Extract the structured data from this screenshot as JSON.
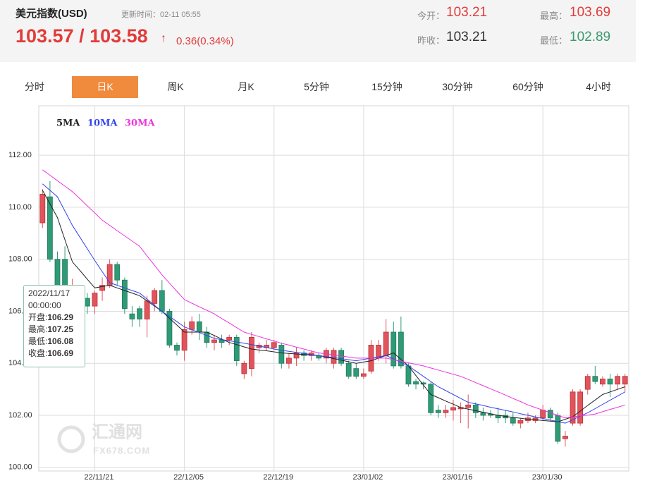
{
  "header": {
    "title": "美元指数(USD)",
    "updated": "更新时间：02-11 05:55",
    "price": "103.57 / 103.58",
    "arrow": "↑",
    "change": "0.36(0.34%)",
    "stats": [
      {
        "label": "今开：",
        "value": 103.21
      },
      {
        "label": "最高：",
        "value": 103.69
      },
      {
        "label": "昨收：",
        "value": 103.21
      },
      {
        "label": "最低：",
        "value": 102.89
      }
    ]
  },
  "tabs": [
    "分时",
    "日K",
    "周K",
    "月K",
    "5分钟",
    "15分钟",
    "30分钟",
    "60分钟",
    "4小时"
  ],
  "active_tab": 1,
  "watermark": {
    "name": "汇通网",
    "site": "FX678.COM"
  },
  "tooltip": {
    "date": "2022/11/17",
    "time": "00:00:00",
    "labels": [
      "开盘:",
      "最高:",
      "最低:",
      "收盘:"
    ]
  },
  "chart_data": {
    "type": "candlestick",
    "categories": [
      null,
      null,
      null,
      null,
      null,
      null,
      null,
      "22/11/21",
      null,
      null,
      null,
      null,
      null,
      null,
      null,
      null,
      null,
      null,
      null,
      "22/12/05",
      null,
      null,
      null,
      null,
      null,
      null,
      null,
      null,
      null,
      null,
      null,
      "22/12/19",
      null,
      null,
      null,
      null,
      null,
      null,
      null,
      null,
      null,
      null,
      null,
      "23/01/02",
      null,
      null,
      null,
      null,
      null,
      null,
      null,
      null,
      null,
      null,
      null,
      "23/01/16",
      null,
      null,
      null,
      null,
      null,
      null,
      null,
      null,
      null,
      null,
      null,
      "23/01/30",
      null,
      null,
      null,
      null,
      null,
      null,
      null,
      null,
      null,
      null,
      null
    ],
    "candles": {
      "up_color": "#e2545b",
      "down_color": "#2f9a76",
      "open": [
        109.4,
        110.4,
        108.0,
        108.0,
        106.29,
        106.7,
        106.5,
        106.2,
        106.8,
        107.0,
        107.8,
        107.2,
        105.9,
        106.1,
        105.7,
        106.3,
        106.8,
        106.0,
        104.7,
        104.5,
        105.3,
        105.6,
        105.2,
        104.8,
        104.9,
        104.9,
        105.0,
        103.6,
        103.8,
        104.6,
        104.6,
        104.6,
        104.7,
        104.0,
        104.2,
        104.4,
        104.3,
        104.3,
        104.2,
        104.0,
        104.5,
        104.0,
        103.8,
        103.5,
        103.7,
        104.2,
        104.3,
        105.2,
        105.2,
        103.9,
        103.3,
        103.25,
        103.2,
        102.2,
        102.1,
        102.2,
        102.25,
        102.3,
        102.4,
        102.1,
        102.05,
        102.0,
        102.0,
        101.9,
        101.7,
        101.8,
        101.8,
        101.9,
        102.2,
        102.0,
        101.1,
        101.7,
        101.7,
        103.0,
        103.5,
        103.2,
        103.4,
        103.2,
        103.2
      ],
      "high": [
        110.7,
        111.0,
        108.3,
        108.5,
        107.25,
        107.0,
        106.7,
        106.8,
        107.3,
        108.0,
        107.9,
        107.3,
        106.2,
        106.2,
        106.6,
        106.9,
        107.2,
        106.1,
        104.8,
        105.6,
        105.8,
        105.9,
        105.4,
        105.1,
        105.1,
        105.1,
        105.1,
        104.1,
        105.2,
        104.8,
        104.9,
        104.9,
        104.8,
        104.4,
        104.6,
        104.5,
        104.5,
        104.4,
        104.6,
        104.6,
        104.6,
        104.1,
        104.0,
        103.8,
        104.9,
        104.9,
        105.7,
        105.6,
        105.8,
        104.0,
        103.4,
        103.3,
        103.3,
        102.4,
        102.4,
        102.6,
        102.5,
        102.8,
        102.5,
        102.3,
        102.2,
        102.3,
        102.2,
        102.1,
        101.9,
        102.1,
        102.0,
        102.4,
        102.3,
        102.1,
        101.4,
        103.0,
        103.0,
        103.6,
        103.9,
        103.5,
        103.6,
        103.6,
        103.6
      ],
      "low": [
        109.2,
        107.9,
        106.2,
        106.2,
        106.08,
        106.0,
        105.9,
        105.9,
        106.4,
        106.9,
        107.0,
        105.9,
        105.4,
        105.4,
        105.0,
        106.0,
        105.9,
        104.6,
        104.3,
        104.1,
        105.1,
        104.9,
        104.6,
        104.5,
        104.6,
        104.7,
        103.9,
        103.4,
        103.5,
        104.4,
        104.5,
        104.5,
        103.8,
        103.8,
        103.9,
        104.1,
        104.1,
        104.1,
        104.0,
        103.8,
        103.9,
        103.4,
        103.4,
        103.4,
        103.6,
        104.1,
        104.0,
        103.8,
        103.8,
        103.1,
        103.0,
        103.0,
        102.0,
        101.9,
        101.9,
        101.8,
        101.7,
        101.5,
        101.9,
        101.8,
        101.9,
        101.7,
        101.7,
        101.6,
        101.5,
        101.7,
        101.7,
        101.8,
        101.8,
        100.9,
        100.8,
        101.6,
        101.6,
        102.8,
        103.2,
        103.1,
        102.7,
        103.0,
        102.9
      ],
      "close": [
        110.5,
        108.0,
        106.4,
        106.5,
        106.69,
        106.3,
        106.2,
        106.7,
        107.0,
        107.8,
        107.2,
        106.1,
        105.7,
        105.7,
        106.4,
        106.8,
        106.0,
        104.7,
        104.5,
        105.3,
        105.6,
        105.2,
        104.8,
        104.9,
        104.8,
        105.0,
        104.1,
        104.0,
        105.0,
        104.7,
        104.7,
        104.8,
        104.0,
        104.2,
        104.4,
        104.3,
        104.4,
        104.2,
        104.5,
        104.5,
        104.0,
        103.5,
        103.5,
        103.6,
        104.7,
        104.7,
        105.2,
        103.9,
        103.9,
        103.2,
        103.2,
        103.2,
        102.1,
        102.1,
        102.2,
        102.3,
        102.3,
        102.4,
        102.1,
        102.0,
        102.0,
        101.9,
        101.9,
        101.7,
        101.8,
        101.9,
        101.9,
        102.2,
        101.9,
        101.0,
        101.2,
        102.9,
        102.9,
        103.5,
        103.3,
        103.4,
        103.2,
        103.5,
        103.5
      ]
    },
    "series": [
      {
        "name": "5MA",
        "color": "#222222",
        "values": [
          110.65,
          110.13,
          109.6,
          108.75,
          107.9,
          107.57,
          107.23,
          106.9,
          106.95,
          107.0,
          106.9,
          106.8,
          106.7,
          106.6,
          106.4,
          106.2,
          106.0,
          105.73,
          105.47,
          105.2,
          105.2,
          105.2,
          105.2,
          105.07,
          104.93,
          104.8,
          104.72,
          104.63,
          104.55,
          104.51,
          104.48,
          104.44,
          104.4,
          104.38,
          104.36,
          104.34,
          104.32,
          104.3,
          104.24,
          104.18,
          104.12,
          104.06,
          104.0,
          104.05,
          104.1,
          104.2,
          104.3,
          104.4,
          104.15,
          103.9,
          103.53,
          103.17,
          102.8,
          102.68,
          102.55,
          102.43,
          102.3,
          102.24,
          102.18,
          102.12,
          102.06,
          102.0,
          101.96,
          101.92,
          101.89,
          101.85,
          101.83,
          101.8,
          101.78,
          101.75,
          101.85,
          101.95,
          102.16,
          102.38,
          102.59,
          102.8,
          102.9,
          103.0,
          103.1
        ]
      },
      {
        "name": "10MA",
        "color": "#3344ee",
        "values": [
          110.9,
          110.65,
          110.4,
          109.85,
          109.3,
          108.85,
          108.4,
          107.95,
          107.52,
          107.1,
          107.0,
          106.9,
          106.8,
          106.7,
          106.47,
          106.23,
          106.0,
          105.8,
          105.6,
          105.4,
          105.29,
          105.18,
          105.07,
          104.96,
          104.91,
          104.87,
          104.82,
          104.77,
          104.72,
          104.66,
          104.61,
          104.55,
          104.5,
          104.46,
          104.42,
          104.38,
          104.34,
          104.3,
          104.26,
          104.22,
          104.18,
          104.14,
          104.1,
          104.15,
          104.2,
          104.25,
          104.3,
          104.17,
          104.03,
          103.9,
          103.7,
          103.5,
          103.3,
          103.1,
          102.95,
          102.8,
          102.65,
          102.5,
          102.44,
          102.38,
          102.31,
          102.25,
          102.19,
          102.13,
          102.06,
          102.0,
          101.94,
          101.88,
          101.82,
          101.76,
          101.7,
          101.83,
          101.97,
          102.1,
          102.26,
          102.42,
          102.58,
          102.74,
          102.9
        ]
      },
      {
        "name": "30MA",
        "color": "#ee33dd",
        "values": [
          111.44,
          111.23,
          111.02,
          110.81,
          110.6,
          110.33,
          110.05,
          109.78,
          109.5,
          109.3,
          109.1,
          108.9,
          108.7,
          108.5,
          108.13,
          107.77,
          107.4,
          107.08,
          106.77,
          106.45,
          106.31,
          106.17,
          106.04,
          105.9,
          105.72,
          105.55,
          105.37,
          105.2,
          105.11,
          105.03,
          104.94,
          104.86,
          104.77,
          104.7,
          104.62,
          104.55,
          104.47,
          104.4,
          104.36,
          104.32,
          104.28,
          104.24,
          104.2,
          104.2,
          104.2,
          104.2,
          104.2,
          104.14,
          104.08,
          104.02,
          103.96,
          103.9,
          103.82,
          103.74,
          103.66,
          103.58,
          103.5,
          103.38,
          103.26,
          103.14,
          103.02,
          102.9,
          102.78,
          102.65,
          102.53,
          102.4,
          102.3,
          102.2,
          102.1,
          102.0,
          101.9,
          101.94,
          101.98,
          102.01,
          102.05,
          102.14,
          102.23,
          102.31,
          102.4
        ]
      }
    ],
    "ylim": [
      99.86,
      113.9
    ],
    "yticks": [
      {
        "value": 100,
        "label": "100.00"
      },
      {
        "value": 102,
        "label": "102.00"
      },
      {
        "value": 104,
        "label": "104.00"
      },
      {
        "value": 106,
        "label": "106.00"
      },
      {
        "value": 108,
        "label": "108.00"
      },
      {
        "value": 110,
        "label": "110.00"
      },
      {
        "value": 112,
        "label": "112.00"
      }
    ],
    "grid": true
  }
}
